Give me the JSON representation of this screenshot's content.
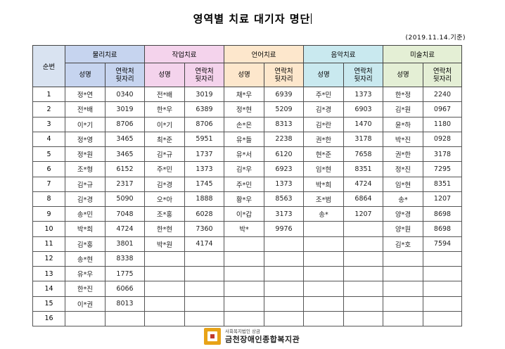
{
  "title": "영역별 치료 대기자 명단",
  "date_note": "(2019.11.14.기준)",
  "order_label": "순번",
  "subheaders": {
    "name": "성명",
    "contact": "연락처\n뒷자리"
  },
  "groups": [
    "물리치료",
    "작업치료",
    "언어치료",
    "음악치료",
    "미술치료"
  ],
  "rows": [
    [
      "1",
      "정*연",
      "0340",
      "전*배",
      "3019",
      "채*우",
      "6939",
      "주*민",
      "1373",
      "한*정",
      "2240"
    ],
    [
      "2",
      "전*배",
      "3019",
      "한*우",
      "6389",
      "정*현",
      "5209",
      "김*경",
      "6903",
      "김*원",
      "0967"
    ],
    [
      "3",
      "이*기",
      "8706",
      "이*기",
      "8706",
      "손*은",
      "8313",
      "김*란",
      "1470",
      "윤*하",
      "1180"
    ],
    [
      "4",
      "정*영",
      "3465",
      "최*준",
      "5951",
      "유*들",
      "2238",
      "권*한",
      "3178",
      "박*진",
      "0928"
    ],
    [
      "5",
      "정*원",
      "3465",
      "김*규",
      "1737",
      "유*서",
      "6120",
      "현*준",
      "7658",
      "권*한",
      "3178"
    ],
    [
      "6",
      "조*형",
      "6152",
      "주*민",
      "1373",
      "김*우",
      "6923",
      "임*현",
      "8351",
      "정*진",
      "7295"
    ],
    [
      "7",
      "김*규",
      "2317",
      "김*경",
      "1745",
      "주*민",
      "1373",
      "박*희",
      "4724",
      "임*현",
      "8351"
    ],
    [
      "8",
      "김*경",
      "5090",
      "오*아",
      "1888",
      "황*우",
      "8563",
      "조*범",
      "6864",
      "송*",
      "1207"
    ],
    [
      "9",
      "송*민",
      "7048",
      "조*홍",
      "6028",
      "이*갑",
      "3173",
      "송*",
      "1207",
      "양*경",
      "8698"
    ],
    [
      "10",
      "박*희",
      "4724",
      "한*현",
      "7360",
      "박*",
      "9976",
      "",
      "",
      "양*원",
      "8698"
    ],
    [
      "11",
      "김*홍",
      "3801",
      "박*원",
      "4174",
      "",
      "",
      "",
      "",
      "김*호",
      "7594"
    ],
    [
      "12",
      "송*현",
      "8338",
      "",
      "",
      "",
      "",
      "",
      "",
      "",
      ""
    ],
    [
      "13",
      "유*우",
      "1775",
      "",
      "",
      "",
      "",
      "",
      "",
      "",
      ""
    ],
    [
      "14",
      "한*진",
      "6066",
      "",
      "",
      "",
      "",
      "",
      "",
      "",
      ""
    ],
    [
      "15",
      "이*권",
      "8013",
      "",
      "",
      "",
      "",
      "",
      "",
      "",
      ""
    ],
    [
      "16",
      "",
      "",
      "",
      "",
      "",
      "",
      "",
      "",
      "",
      ""
    ]
  ],
  "logo": {
    "subtitle": "사회복지법인 상금",
    "name": "금천장애인종합복지관"
  },
  "colors": {
    "physical": "#c6d4ef",
    "occupational": "#f4d3ec",
    "speech": "#fde7cc",
    "music": "#c9e9ef",
    "art": "#e4efd5"
  }
}
